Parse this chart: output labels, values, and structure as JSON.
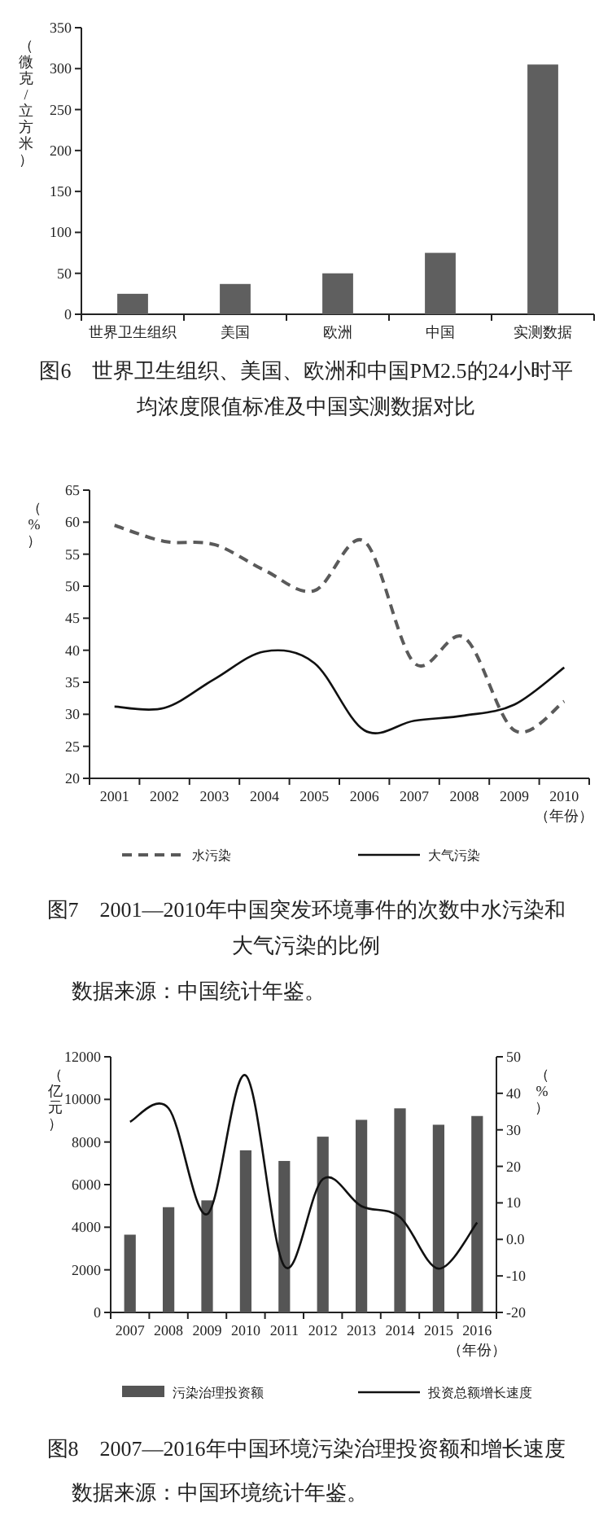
{
  "chart_data": [
    {
      "type": "bar",
      "title": "图6　世界卫生组织、美国、欧洲和中国PM2.5的24小时平均浓度限值标准及中国实测数据对比",
      "ylabel": "（微克/立方米）",
      "categories": [
        "世界卫生组织",
        "美国",
        "欧洲",
        "中国",
        "实测数据"
      ],
      "values": [
        25,
        37,
        50,
        75,
        305
      ],
      "color": "#5f5f5f",
      "ylim": [
        0,
        350
      ],
      "yticks": [
        0,
        50,
        100,
        150,
        200,
        250,
        300,
        350
      ]
    },
    {
      "type": "line",
      "title": "图7　2001—2010年中国突发环境事件的次数中水污染和大气污染的比例",
      "xlabel": "（年份）",
      "ylabel": "（%）",
      "categories": [
        "2001",
        "2002",
        "2003",
        "2004",
        "2005",
        "2006",
        "2007",
        "2008",
        "2009",
        "2010"
      ],
      "series": [
        {
          "name": "水污染",
          "color": "#5a5a5a",
          "line_style": "dashed",
          "values": [
            59.5,
            57,
            56.5,
            52.5,
            49.3,
            57,
            38,
            42,
            27.5,
            32
          ]
        },
        {
          "name": "大气污染",
          "color": "#111111",
          "line_style": "solid",
          "values": [
            31.2,
            31,
            35.5,
            39.8,
            38,
            27.5,
            29,
            29.8,
            31.5,
            37.3
          ]
        }
      ],
      "ylim": [
        20,
        65
      ],
      "yticks": [
        20,
        25,
        30,
        35,
        40,
        45,
        50,
        55,
        60,
        65
      ],
      "legend": "bottom",
      "annotations": [
        "数据来源：中国统计年鉴。"
      ]
    },
    {
      "type": "bar",
      "title": "图8　2007—2016年中国环境污染治理投资额和增长速度",
      "xlabel": "（年份）",
      "ylabel": "（亿元）",
      "y2label": "（%）",
      "categories": [
        "2007",
        "2008",
        "2009",
        "2010",
        "2011",
        "2012",
        "2013",
        "2014",
        "2015",
        "2016"
      ],
      "series": [
        {
          "name": "污染治理投资额",
          "color": "#555555",
          "values": [
            3650,
            4940,
            5260,
            7610,
            7110,
            8250,
            9040,
            9580,
            8810,
            9220
          ]
        },
        {
          "name": "投资总额增长速度",
          "type": "line",
          "axis": "y2",
          "color": "#111111",
          "values": [
            32.2,
            35.9,
            6.9,
            44.9,
            -7.3,
            16.5,
            9.1,
            6.1,
            -8,
            4.6
          ]
        }
      ],
      "ylim": [
        0,
        12000
      ],
      "yticks": [
        0,
        2000,
        4000,
        6000,
        8000,
        10000,
        12000
      ],
      "y2lim": [
        -20,
        50
      ],
      "y2ticks": [
        -20,
        -10,
        {
          "value": 0,
          "label": "0.0"
        },
        10,
        20,
        30,
        40,
        50
      ],
      "legend": "bottom",
      "annotations": [
        "数据来源：中国环境统计年鉴。"
      ]
    }
  ]
}
